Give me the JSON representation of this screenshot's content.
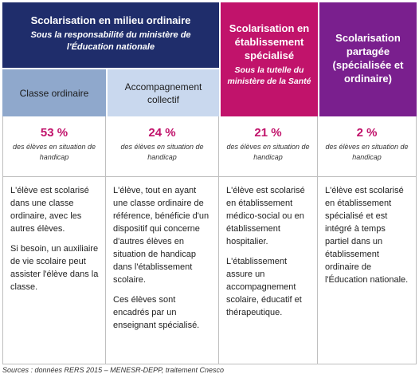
{
  "header": {
    "ordinaire": {
      "title": "Scolarisation en milieu ordinaire",
      "subtitle": "Sous la responsabilité du ministère de l'Éducation nationale"
    },
    "specialise": {
      "title": "Scolarisation en établissement spécialisé",
      "subtitle": "Sous la tutelle du ministère de la Santé"
    },
    "partagee": {
      "title": "Scolarisation partagée (spécialisée et ordinaire)"
    }
  },
  "subheader": {
    "classe": "Classe ordinaire",
    "accompagnement": "Accompagnement collectif"
  },
  "percentages": [
    {
      "value": "53 %",
      "note": "des élèves en situation de handicap"
    },
    {
      "value": "24 %",
      "note": "des élèves en situation de handicap"
    },
    {
      "value": "21 %",
      "note": "des élèves en situation de handicap"
    },
    {
      "value": "2 %",
      "note": "des élèves en situation de handicap"
    }
  ],
  "descriptions": [
    [
      "L'élève est scolarisé dans une classe ordinaire, avec les autres élèves.",
      "Si besoin, un auxiliaire de vie scolaire peut assister l'élève dans la classe."
    ],
    [
      "L'élève, tout en ayant une classe ordinaire de référence, bénéficie d'un dispositif qui concerne d'autres élèves en situation de handicap dans l'établissement scolaire.",
      "Ces élèves sont encadrés par un enseignant spécialisé."
    ],
    [
      "L'élève est scolarisé en établissement médico-social ou en établissement hospitalier.",
      "L'établissement assure un accompagnement scolaire, éducatif et thérapeutique."
    ],
    [
      "L'élève est scolarisé en établissement spécialisé et est intégré à temps partiel dans un établissement ordinaire de l'Éducation nationale."
    ]
  ],
  "source": "Sources : données RERS 2015 – MENESR-DEPP, traitement Cnesco",
  "colors": {
    "navy": "#1f2d6b",
    "magenta": "#c1136b",
    "purple": "#7a1f8e",
    "blue_mid": "#8fa8cc",
    "blue_light": "#c9d8ee"
  }
}
